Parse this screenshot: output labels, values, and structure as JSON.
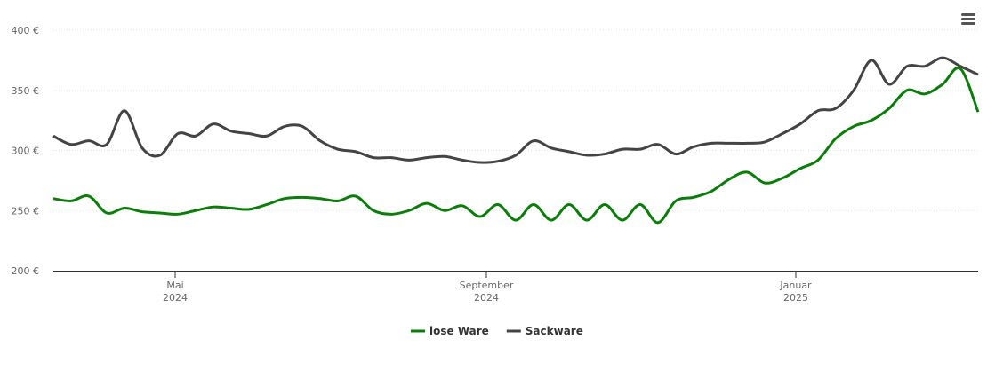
{
  "chart_data": {
    "type": "line",
    "categories": [
      null,
      null,
      null,
      null,
      null,
      null,
      null,
      null,
      null,
      null,
      null,
      null,
      null,
      null,
      null,
      null,
      null,
      null,
      null,
      null,
      null,
      null,
      null,
      null,
      null,
      null,
      null,
      null,
      null,
      null,
      null,
      null,
      null,
      null,
      null,
      null,
      null,
      null,
      null,
      null,
      null,
      null,
      null,
      null,
      null,
      null,
      null,
      null,
      null,
      null,
      null,
      null,
      null
    ],
    "series": [
      {
        "name": "lose Ware",
        "color": "#0a7d0a",
        "values": [
          260,
          258,
          262,
          248,
          252,
          249,
          248,
          247,
          250,
          253,
          252,
          251,
          255,
          260,
          261,
          260,
          258,
          262,
          250,
          247,
          250,
          256,
          250,
          254,
          245,
          255,
          242,
          255,
          242,
          255,
          242,
          255,
          242,
          255,
          240,
          258,
          261,
          266,
          276,
          282,
          273,
          277,
          285,
          292,
          310,
          320,
          325,
          335,
          350,
          347,
          355,
          368,
          332
        ]
      },
      {
        "name": "Sackware",
        "color": "#444444",
        "values": [
          312,
          305,
          308,
          305,
          333,
          302,
          296,
          314,
          312,
          322,
          316,
          314,
          312,
          320,
          320,
          308,
          301,
          299,
          294,
          294,
          292,
          294,
          295,
          292,
          290,
          291,
          296,
          308,
          302,
          299,
          296,
          297,
          301,
          301,
          305,
          297,
          303,
          306,
          306,
          306,
          307,
          314,
          322,
          333,
          335,
          350,
          375,
          355,
          370,
          370,
          377,
          370,
          363
        ]
      }
    ],
    "ylim": [
      200,
      400
    ],
    "yticks": [
      {
        "value": 200,
        "label": "200 €"
      },
      {
        "value": 250,
        "label": "250 €"
      },
      {
        "value": 300,
        "label": "300 €"
      },
      {
        "value": 350,
        "label": "350 €"
      },
      {
        "value": 400,
        "label": "400 €"
      }
    ],
    "xticks": [
      {
        "value": 6.85,
        "label": "Mai\n2024"
      },
      {
        "value": 24.35,
        "label": "September\n2024"
      },
      {
        "value": 41.75,
        "label": "Januar\n2025"
      }
    ],
    "grid": true
  }
}
